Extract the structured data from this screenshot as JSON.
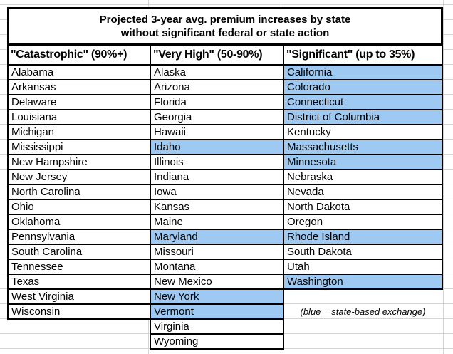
{
  "title": {
    "line1": "Projected 3-year avg. premium increases by state",
    "line2": "without significant federal or state action"
  },
  "note": "(blue = state-based exchange)",
  "colors": {
    "highlight_blue": "#9dc9f2",
    "grid_line": "#d4d4d4",
    "cell_border": "#000000",
    "background": "#ffffff",
    "text": "#000000"
  },
  "table": {
    "row_count": 19,
    "note_row": 17,
    "note_column": 3,
    "columns": [
      {
        "header": "\"Catastrophic\" (90%+)",
        "states": [
          {
            "name": "Alabama",
            "highlighted": false
          },
          {
            "name": "Arkansas",
            "highlighted": false
          },
          {
            "name": "Delaware",
            "highlighted": false
          },
          {
            "name": "Louisiana",
            "highlighted": false
          },
          {
            "name": "Michigan",
            "highlighted": false
          },
          {
            "name": "Mississippi",
            "highlighted": false
          },
          {
            "name": "New Hampshire",
            "highlighted": false
          },
          {
            "name": "New Jersey",
            "highlighted": false
          },
          {
            "name": "North Carolina",
            "highlighted": false
          },
          {
            "name": "Ohio",
            "highlighted": false
          },
          {
            "name": "Oklahoma",
            "highlighted": false
          },
          {
            "name": "Pennsylvania",
            "highlighted": false
          },
          {
            "name": "South Carolina",
            "highlighted": false
          },
          {
            "name": "Tennessee",
            "highlighted": false
          },
          {
            "name": "Texas",
            "highlighted": false
          },
          {
            "name": "West Virginia",
            "highlighted": false
          },
          {
            "name": "Wisconsin",
            "highlighted": false
          }
        ]
      },
      {
        "header": "\"Very High\" (50-90%)",
        "states": [
          {
            "name": "Alaska",
            "highlighted": false
          },
          {
            "name": "Arizona",
            "highlighted": false
          },
          {
            "name": "Florida",
            "highlighted": false
          },
          {
            "name": "Georgia",
            "highlighted": false
          },
          {
            "name": "Hawaii",
            "highlighted": false
          },
          {
            "name": "Idaho",
            "highlighted": true
          },
          {
            "name": "Illinois",
            "highlighted": false
          },
          {
            "name": "Indiana",
            "highlighted": false
          },
          {
            "name": "Iowa",
            "highlighted": false
          },
          {
            "name": "Kansas",
            "highlighted": false
          },
          {
            "name": "Maine",
            "highlighted": false
          },
          {
            "name": "Maryland",
            "highlighted": true
          },
          {
            "name": "Missouri",
            "highlighted": false
          },
          {
            "name": "Montana",
            "highlighted": false
          },
          {
            "name": "New Mexico",
            "highlighted": false
          },
          {
            "name": "New York",
            "highlighted": true
          },
          {
            "name": "Vermont",
            "highlighted": true
          },
          {
            "name": "Virginia",
            "highlighted": false
          },
          {
            "name": "Wyoming",
            "highlighted": false
          }
        ]
      },
      {
        "header": "\"Significant\" (up to 35%)",
        "states": [
          {
            "name": "California",
            "highlighted": true
          },
          {
            "name": "Colorado",
            "highlighted": true
          },
          {
            "name": "Connecticut",
            "highlighted": true
          },
          {
            "name": "District of Columbia",
            "highlighted": true
          },
          {
            "name": "Kentucky",
            "highlighted": false
          },
          {
            "name": "Massachusetts",
            "highlighted": true
          },
          {
            "name": "Minnesota",
            "highlighted": true
          },
          {
            "name": "Nebraska",
            "highlighted": false
          },
          {
            "name": "Nevada",
            "highlighted": false
          },
          {
            "name": "North Dakota",
            "highlighted": false
          },
          {
            "name": "Oregon",
            "highlighted": false
          },
          {
            "name": "Rhode Island",
            "highlighted": true
          },
          {
            "name": "South Dakota",
            "highlighted": false
          },
          {
            "name": "Utah",
            "highlighted": false
          },
          {
            "name": "Washington",
            "highlighted": true
          }
        ]
      }
    ]
  }
}
